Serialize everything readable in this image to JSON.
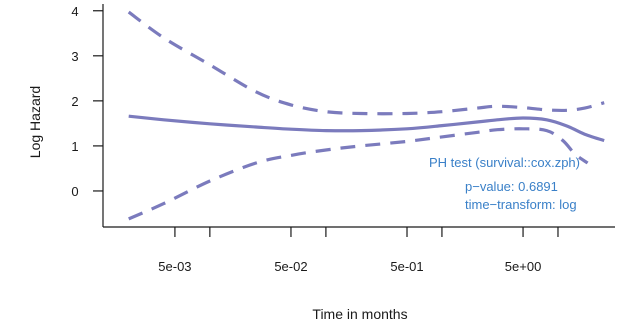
{
  "chart_data": {
    "type": "line",
    "xlabel": "Time in months",
    "ylabel": "Log Hazard",
    "x_scale": "log10",
    "xlim": [
      0.0012,
      31
    ],
    "ylim": [
      -0.8,
      4.15
    ],
    "grid": false,
    "x_ticks": [
      {
        "value": 0.005,
        "label": "5e-03"
      },
      {
        "value": 0.05,
        "label": "5e-02"
      },
      {
        "value": 0.5,
        "label": "5e-01"
      },
      {
        "value": 5,
        "label": "5e+00"
      }
    ],
    "x_minor_ticks": [
      0.01,
      0.1,
      1,
      10
    ],
    "y_ticks": [
      0,
      1,
      2,
      3,
      4
    ],
    "series": [
      {
        "role": "estimate",
        "style": "solid",
        "color": "#7b7bbd",
        "points": [
          [
            0.002,
            1.66
          ],
          [
            0.004,
            1.58
          ],
          [
            0.01,
            1.49
          ],
          [
            0.025,
            1.42
          ],
          [
            0.05,
            1.37
          ],
          [
            0.1,
            1.34
          ],
          [
            0.2,
            1.34
          ],
          [
            0.5,
            1.38
          ],
          [
            1,
            1.45
          ],
          [
            2,
            1.53
          ],
          [
            3,
            1.58
          ],
          [
            5,
            1.62
          ],
          [
            8,
            1.58
          ],
          [
            12,
            1.44
          ],
          [
            17,
            1.26
          ],
          [
            25,
            1.12
          ]
        ]
      },
      {
        "role": "upper-bound",
        "style": "dashed",
        "color": "#7b7bbd",
        "points": [
          [
            0.002,
            3.97
          ],
          [
            0.004,
            3.4
          ],
          [
            0.01,
            2.8
          ],
          [
            0.025,
            2.2
          ],
          [
            0.05,
            1.91
          ],
          [
            0.1,
            1.76
          ],
          [
            0.2,
            1.72
          ],
          [
            0.5,
            1.72
          ],
          [
            1,
            1.76
          ],
          [
            2,
            1.84
          ],
          [
            3,
            1.88
          ],
          [
            5,
            1.85
          ],
          [
            8,
            1.8
          ],
          [
            12,
            1.79
          ],
          [
            17,
            1.84
          ],
          [
            25,
            1.96
          ]
        ]
      },
      {
        "role": "lower-bound",
        "style": "dashed",
        "color": "#7b7bbd",
        "points": [
          [
            0.002,
            -0.62
          ],
          [
            0.004,
            -0.28
          ],
          [
            0.01,
            0.22
          ],
          [
            0.025,
            0.62
          ],
          [
            0.05,
            0.79
          ],
          [
            0.1,
            0.91
          ],
          [
            0.2,
            1.0
          ],
          [
            0.5,
            1.1
          ],
          [
            1,
            1.2
          ],
          [
            2,
            1.3
          ],
          [
            3,
            1.36
          ],
          [
            5,
            1.38
          ],
          [
            8,
            1.34
          ],
          [
            11,
            1.12
          ],
          [
            14,
            0.82
          ],
          [
            18,
            0.62
          ]
        ]
      }
    ],
    "annotation": {
      "color": "#3a80c8",
      "title": "PH test (survival::cox.zph)",
      "pvalue": "p−value: 0.6891",
      "transform": "time−transform: log"
    }
  }
}
